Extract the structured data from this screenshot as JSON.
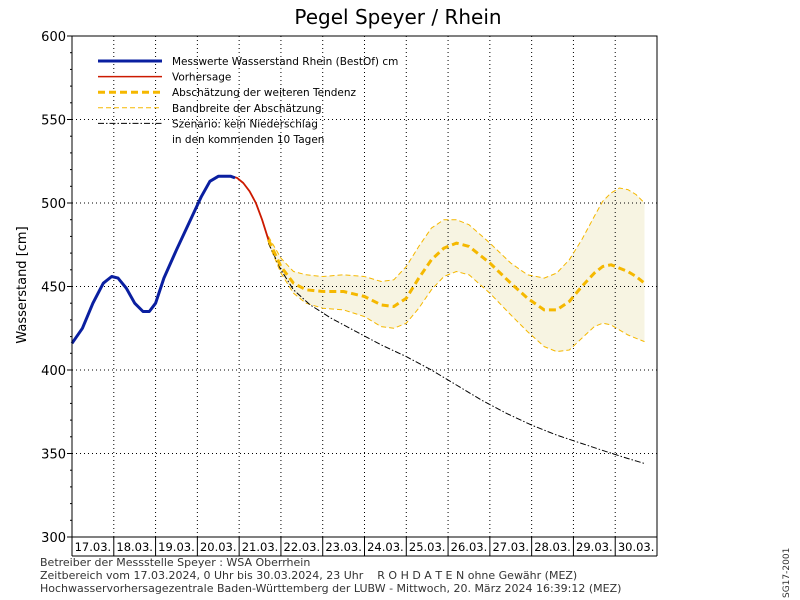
{
  "chart_data": {
    "type": "line",
    "title": "Pegel Speyer / Rhein",
    "ylabel": "Wasserstand  [cm]",
    "xlabel": "",
    "ylim": [
      300,
      600
    ],
    "yticks": [
      300,
      350,
      400,
      450,
      500,
      550,
      600
    ],
    "xlim": [
      0,
      14
    ],
    "day_labels": [
      "17.03.",
      "18.03.",
      "19.03.",
      "20.03.",
      "21.03.",
      "22.03.",
      "23.03.",
      "24.03.",
      "25.03.",
      "26.03.",
      "27.03.",
      "28.03.",
      "29.03.",
      "30.03."
    ],
    "grid": true,
    "legend_position": "top-left",
    "legend": [
      {
        "key": "measured",
        "label": "Messwerte Wasserstand Rhein (BestOf)   cm",
        "style": "solid-thick",
        "color": "#0a1fa0"
      },
      {
        "key": "forecast",
        "label": "Vorhersage",
        "style": "solid",
        "color": "#cc1a00"
      },
      {
        "key": "tendency",
        "label": "Abschätzung der weiteren Tendenz",
        "style": "dashed-thick",
        "color": "#f5b800"
      },
      {
        "key": "band",
        "label": "Bandbreite der Abschätzung",
        "style": "dashed-thin",
        "color": "#f5b800"
      },
      {
        "key": "scenario",
        "label": "Szenario: kein Niederschlag",
        "label2": "in den kommenden 10 Tagen",
        "style": "dash-dot",
        "color": "#000000"
      }
    ],
    "series": [
      {
        "name": "Messwerte Wasserstand Rhein (BestOf)   cm",
        "key": "measured",
        "color": "#0a1fa0",
        "x": [
          0.0,
          0.25,
          0.5,
          0.75,
          0.95,
          1.1,
          1.3,
          1.5,
          1.7,
          1.85,
          2.0,
          2.2,
          2.5,
          2.8,
          3.1,
          3.3,
          3.5,
          3.7,
          3.8,
          3.9
        ],
        "y": [
          416,
          425,
          440,
          452,
          456,
          455,
          449,
          440,
          435,
          435,
          440,
          455,
          472,
          488,
          504,
          513,
          516,
          516,
          516,
          515
        ]
      },
      {
        "name": "Vorhersage",
        "key": "forecast",
        "color": "#cc1a00",
        "x": [
          3.8,
          3.95,
          4.1,
          4.25,
          4.4,
          4.55,
          4.7
        ],
        "y": [
          516,
          515,
          512,
          507,
          500,
          490,
          478
        ]
      },
      {
        "name": "Abschätzung der weiteren Tendenz",
        "key": "tendency",
        "color": "#f5b800",
        "x": [
          4.7,
          5.0,
          5.3,
          5.6,
          6.0,
          6.5,
          7.0,
          7.4,
          7.7,
          8.0,
          8.3,
          8.6,
          8.9,
          9.2,
          9.5,
          10.0,
          10.5,
          10.9,
          11.3,
          11.6,
          11.9,
          12.2,
          12.5,
          12.7,
          12.9,
          13.1,
          13.3,
          13.5,
          13.7
        ],
        "y": [
          478,
          462,
          452,
          448,
          447,
          447,
          444,
          439,
          438,
          443,
          455,
          466,
          473,
          476,
          474,
          464,
          452,
          443,
          436,
          436,
          441,
          450,
          458,
          462,
          463,
          461,
          459,
          456,
          452
        ]
      },
      {
        "name": "Bandbreite der Abschätzung (oben)",
        "key": "band",
        "color": "#f5b800",
        "x": [
          4.7,
          5.0,
          5.3,
          5.6,
          6.0,
          6.5,
          7.0,
          7.4,
          7.7,
          8.0,
          8.3,
          8.6,
          8.9,
          9.2,
          9.5,
          10.0,
          10.5,
          10.9,
          11.3,
          11.6,
          11.9,
          12.2,
          12.5,
          12.7,
          12.9,
          13.1,
          13.3,
          13.5,
          13.7
        ],
        "y": [
          480,
          467,
          459,
          457,
          456,
          457,
          456,
          453,
          454,
          462,
          474,
          485,
          490,
          490,
          487,
          476,
          464,
          457,
          455,
          458,
          466,
          478,
          492,
          501,
          506,
          509,
          508,
          505,
          500
        ]
      },
      {
        "name": "Bandbreite der Abschätzung (unten)",
        "key": "band",
        "color": "#f5b800",
        "x": [
          4.7,
          5.0,
          5.3,
          5.6,
          6.0,
          6.5,
          7.0,
          7.4,
          7.7,
          8.0,
          8.3,
          8.6,
          8.9,
          9.2,
          9.5,
          10.0,
          10.5,
          10.9,
          11.3,
          11.6,
          11.9,
          12.2,
          12.5,
          12.7,
          12.9,
          13.1,
          13.3,
          13.5,
          13.7
        ],
        "y": [
          476,
          458,
          446,
          440,
          437,
          436,
          432,
          426,
          425,
          428,
          437,
          448,
          456,
          459,
          457,
          446,
          433,
          423,
          414,
          411,
          412,
          419,
          426,
          428,
          427,
          424,
          421,
          419,
          417
        ]
      },
      {
        "name": "Szenario: kein Niederschlag",
        "key": "scenario",
        "color": "#000000",
        "x": [
          4.7,
          5.0,
          5.3,
          5.7,
          6.2,
          6.8,
          7.4,
          8.0,
          8.6,
          9.2,
          9.8,
          10.4,
          11.0,
          11.6,
          12.2,
          12.8,
          13.3,
          13.7
        ],
        "y": [
          476,
          460,
          448,
          439,
          431,
          423,
          415,
          408,
          400,
          391,
          382,
          374,
          367,
          361,
          356,
          351,
          347,
          344
        ]
      }
    ]
  },
  "footer": {
    "line1": "Betreiber der Messstelle Speyer : WSA Oberrhein",
    "line2": "Zeitbereich vom 17.03.2024, 0 Uhr bis 30.03.2024, 23 Uhr    R O H D A T E N ohne Gewähr (MEZ)",
    "line3": "Hochwasservorhersagezentrale Baden-Württemberg der LUBW - Mittwoch, 20. März 2024 16:39:12 (MEZ)",
    "side_code": "SG17-2001"
  }
}
